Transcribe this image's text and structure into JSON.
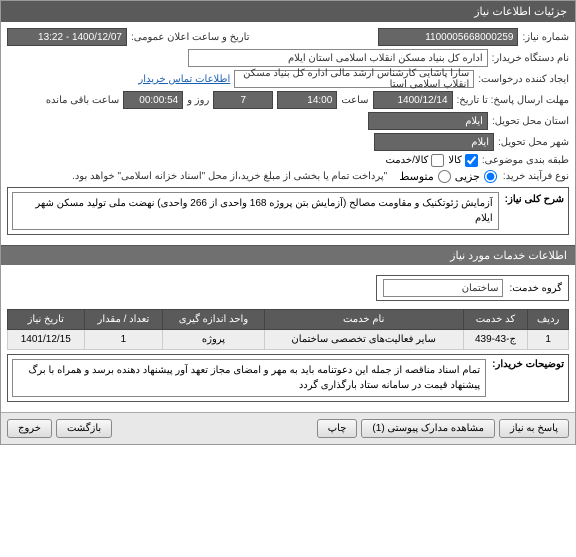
{
  "window": {
    "title": "جزئیات اطلاعات نیاز"
  },
  "fields": {
    "need_no_label": "شماره نیاز:",
    "need_no": "1100005668000259",
    "public_date_label": "تاریخ و ساعت اعلان عمومی:",
    "public_date": "1400/12/07 - 13:22",
    "buyer_label": "نام دستگاه خریدار:",
    "buyer": "اداره کل بنیاد مسکن انقلاب اسلامی استان ایلام",
    "requester_label": "ایجاد کننده درخواست:",
    "requester": "سارا پاشایی کارشناس ارشد مالی اداره کل بنیاد مسکن انقلاب اسلامی استا",
    "contact_link": "اطلاعات تماس خریدار",
    "deadline_label": "مهلت ارسال پاسخ: تا تاریخ:",
    "deadline_date": "1400/12/14",
    "hour_label": "ساعت",
    "deadline_hour": "14:00",
    "days_val": "7",
    "days_label": "روز و",
    "countdown": "00:00:54",
    "remaining_label": "ساعت باقی مانده",
    "province_label": "استان محل تحویل:",
    "province": "ایلام",
    "city_label": "شهر محل تحویل:",
    "city": "ایلام",
    "cat_label": "طبقه بندی موضوعی:",
    "cat_goods": "کالا",
    "cat_service": "کالا/خدمت",
    "process_label": "نوع فرآیند خرید:",
    "process_partial": "جزیی",
    "process_medium": "متوسط",
    "process_note": "\"پرداخت تمام یا بخشی از مبلغ خرید،از محل \"اسناد خزانه اسلامی\" خواهد بود."
  },
  "desc": {
    "label": "شرح کلی نیاز:",
    "text": "آزمایش ژئوتکنیک و مقاومت مصالح (آزمایش بتن پروژه 168 واحدی از 266 واحدی) نهضت ملی تولید مسکن شهر ایلام"
  },
  "section2": {
    "title": "اطلاعات خدمات مورد نیاز"
  },
  "group": {
    "label": "گروه خدمت:",
    "value": "ساختمان"
  },
  "table": {
    "headers": [
      "ردیف",
      "کد خدمت",
      "نام خدمت",
      "واحد اندازه گیری",
      "تعداد / مقدار",
      "تاریخ نیاز"
    ],
    "row": [
      "1",
      "ج-43-439",
      "سایر فعالیت‌های تخصصی ساختمان",
      "پروژه",
      "1",
      "1401/12/15"
    ]
  },
  "note": {
    "label": "توضیحات خریدار:",
    "text": "تمام اسناد مناقصه از جمله این دعوتنامه باید به مهر و امضای مجاز تعهد آور پیشنهاد دهنده برسد و همراه با برگ پیشنهاد قیمت در سامانه ستاد بارگذاری گردد"
  },
  "footer": {
    "respond": "پاسخ به نیاز",
    "attachments": "مشاهده مدارک پیوستی (1)",
    "print": "چاپ",
    "back": "بازگشت",
    "exit": "خروج"
  }
}
